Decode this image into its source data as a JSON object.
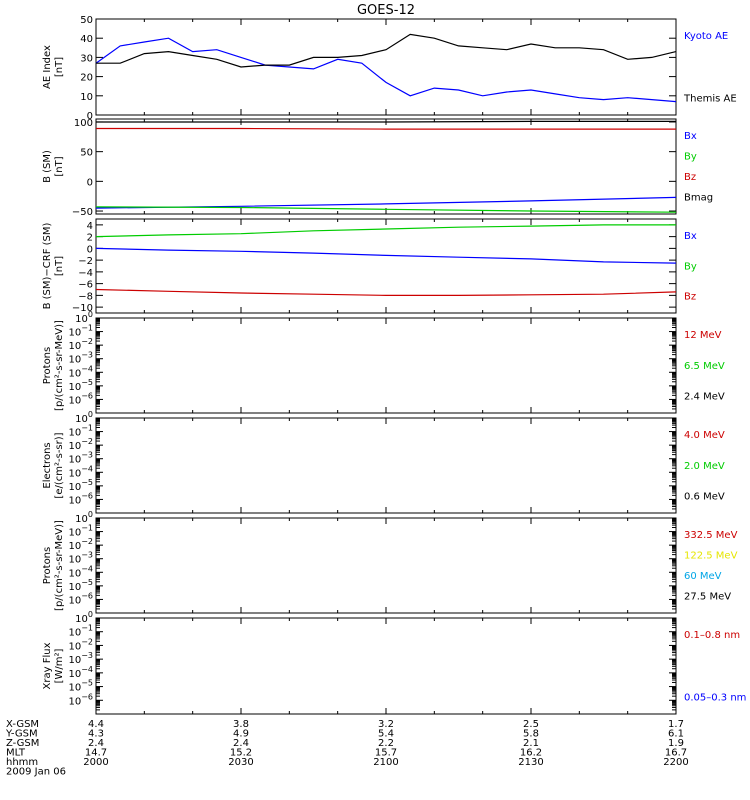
{
  "title": "GOES-12",
  "colors": {
    "black": "#000000",
    "blue": "#0000ff",
    "green": "#00cc00",
    "red": "#cc0000",
    "yellow": "#e6e600",
    "cyan": "#00a5e6"
  },
  "chart_data": [
    {
      "type": "line",
      "ylabel": "AE Index",
      "yunit": "[nT]",
      "ylim": [
        0,
        50
      ],
      "yticks": [
        0,
        10,
        20,
        30,
        40,
        50
      ],
      "x_hhmm": [
        2000,
        2005,
        2010,
        2015,
        2020,
        2025,
        2030,
        2035,
        2040,
        2045,
        2050,
        2055,
        2100,
        2105,
        2110,
        2115,
        2120,
        2125,
        2130,
        2135,
        2140,
        2145,
        2150,
        2155,
        2200
      ],
      "series": [
        {
          "name": "Kyoto AE",
          "color": "#0000ff",
          "values": [
            27,
            36,
            38,
            40,
            33,
            34,
            30,
            26,
            25,
            24,
            29,
            27,
            17,
            10,
            14,
            13,
            10,
            12,
            13,
            11,
            9,
            8,
            9,
            8,
            7
          ]
        },
        {
          "name": "Themis AE",
          "color": "#000000",
          "values": [
            27,
            27,
            32,
            33,
            31,
            29,
            25,
            26,
            26,
            30,
            30,
            31,
            34,
            42,
            40,
            36,
            35,
            34,
            37,
            35,
            35,
            34,
            29,
            30,
            33
          ]
        }
      ]
    },
    {
      "type": "line",
      "ylabel": "B (SM)",
      "yunit": "[nT]",
      "ylim": [
        -55,
        105
      ],
      "yticks": [
        -50,
        0,
        50,
        100
      ],
      "x_hhmm": [
        2000,
        2030,
        2100,
        2130,
        2200
      ],
      "series": [
        {
          "name": "Bx",
          "color": "#0000ff",
          "values": [
            -45,
            -42,
            -38,
            -33,
            -27
          ]
        },
        {
          "name": "By",
          "color": "#00cc00",
          "values": [
            -43,
            -44,
            -47,
            -50,
            -52
          ]
        },
        {
          "name": "Bz",
          "color": "#cc0000",
          "values": [
            89,
            89,
            88,
            88,
            88
          ]
        },
        {
          "name": "Bmag",
          "color": "#000000",
          "values": [
            100,
            100,
            100,
            101,
            101
          ]
        }
      ]
    },
    {
      "type": "line",
      "ylabel": "B (SM)−CRF (SM)",
      "yunit": "[nT]",
      "ylim": [
        -11,
        5
      ],
      "yticks": [
        -10,
        -8,
        -6,
        -4,
        -2,
        0,
        2,
        4
      ],
      "x_hhmm": [
        2000,
        2015,
        2030,
        2045,
        2100,
        2115,
        2130,
        2145,
        2200
      ],
      "series": [
        {
          "name": "Bx",
          "color": "#0000ff",
          "values": [
            0,
            -0.3,
            -0.5,
            -0.8,
            -1.2,
            -1.5,
            -1.8,
            -2.3,
            -2.5
          ]
        },
        {
          "name": "By",
          "color": "#00cc00",
          "values": [
            2,
            2.3,
            2.5,
            3,
            3.3,
            3.6,
            3.8,
            4,
            4
          ]
        },
        {
          "name": "Bz",
          "color": "#cc0000",
          "values": [
            -7,
            -7.3,
            -7.6,
            -7.8,
            -8,
            -8,
            -7.9,
            -7.8,
            -7.4
          ]
        }
      ]
    },
    {
      "type": "line",
      "ylabel": "Protons",
      "yunit": "[p/(cm²-s-sr-MeV)]",
      "yscale": "log",
      "ylim_exp": [
        -7,
        0
      ],
      "yticks_exp": [
        0,
        -1,
        -2,
        -3,
        -4,
        -5,
        -6
      ],
      "series": [
        {
          "name": "12 MeV",
          "color": "#cc0000",
          "values": []
        },
        {
          "name": "6.5 MeV",
          "color": "#00cc00",
          "values": []
        },
        {
          "name": "2.4 MeV",
          "color": "#000000",
          "values": []
        }
      ]
    },
    {
      "type": "line",
      "ylabel": "Electrons",
      "yunit": "[e/(cm²-s-sr)]",
      "yscale": "log",
      "ylim_exp": [
        -7,
        0
      ],
      "yticks_exp": [
        0,
        -1,
        -2,
        -3,
        -4,
        -5,
        -6
      ],
      "series": [
        {
          "name": "4.0 MeV",
          "color": "#cc0000",
          "values": []
        },
        {
          "name": "2.0 MeV",
          "color": "#00cc00",
          "values": []
        },
        {
          "name": "0.6 MeV",
          "color": "#000000",
          "values": []
        }
      ]
    },
    {
      "type": "line",
      "ylabel": "Protons",
      "yunit": "[p/(cm²-s-sr-MeV)]",
      "yscale": "log",
      "ylim_exp": [
        -7,
        0
      ],
      "yticks_exp": [
        0,
        -1,
        -2,
        -3,
        -4,
        -5,
        -6
      ],
      "series": [
        {
          "name": "332.5 MeV",
          "color": "#cc0000",
          "values": []
        },
        {
          "name": "122.5 MeV",
          "color": "#e6e600",
          "values": []
        },
        {
          "name": "60 MeV",
          "color": "#00a5e6",
          "values": []
        },
        {
          "name": "27.5 MeV",
          "color": "#000000",
          "values": []
        }
      ]
    },
    {
      "type": "line",
      "ylabel": "Xray Flux",
      "yunit": "[W/m²]",
      "yscale": "log",
      "ylim_exp": [
        -7,
        0
      ],
      "yticks_exp": [
        0,
        -1,
        -2,
        -3,
        -4,
        -5,
        -6
      ],
      "series": [
        {
          "name": "0.1–0.8 nm",
          "color": "#cc0000",
          "values": []
        },
        {
          "name": "0.05–0.3 nm",
          "color": "#0000ff",
          "values": []
        }
      ]
    }
  ],
  "xaxis": {
    "rows": [
      {
        "label": "X-GSM",
        "values": [
          "4.4",
          "3.8",
          "3.2",
          "2.5",
          "1.7"
        ]
      },
      {
        "label": "Y-GSM",
        "values": [
          "4.3",
          "4.9",
          "5.4",
          "5.8",
          "6.1"
        ]
      },
      {
        "label": "Z-GSM",
        "values": [
          "2.4",
          "2.4",
          "2.2",
          "2.1",
          "1.9"
        ]
      },
      {
        "label": "MLT",
        "values": [
          "14.7",
          "15.2",
          "15.7",
          "16.2",
          "16.7"
        ]
      },
      {
        "label": "hhmm",
        "values": [
          "2000",
          "2030",
          "2100",
          "2130",
          "2200"
        ]
      }
    ],
    "date": "2009 Jan 06"
  }
}
